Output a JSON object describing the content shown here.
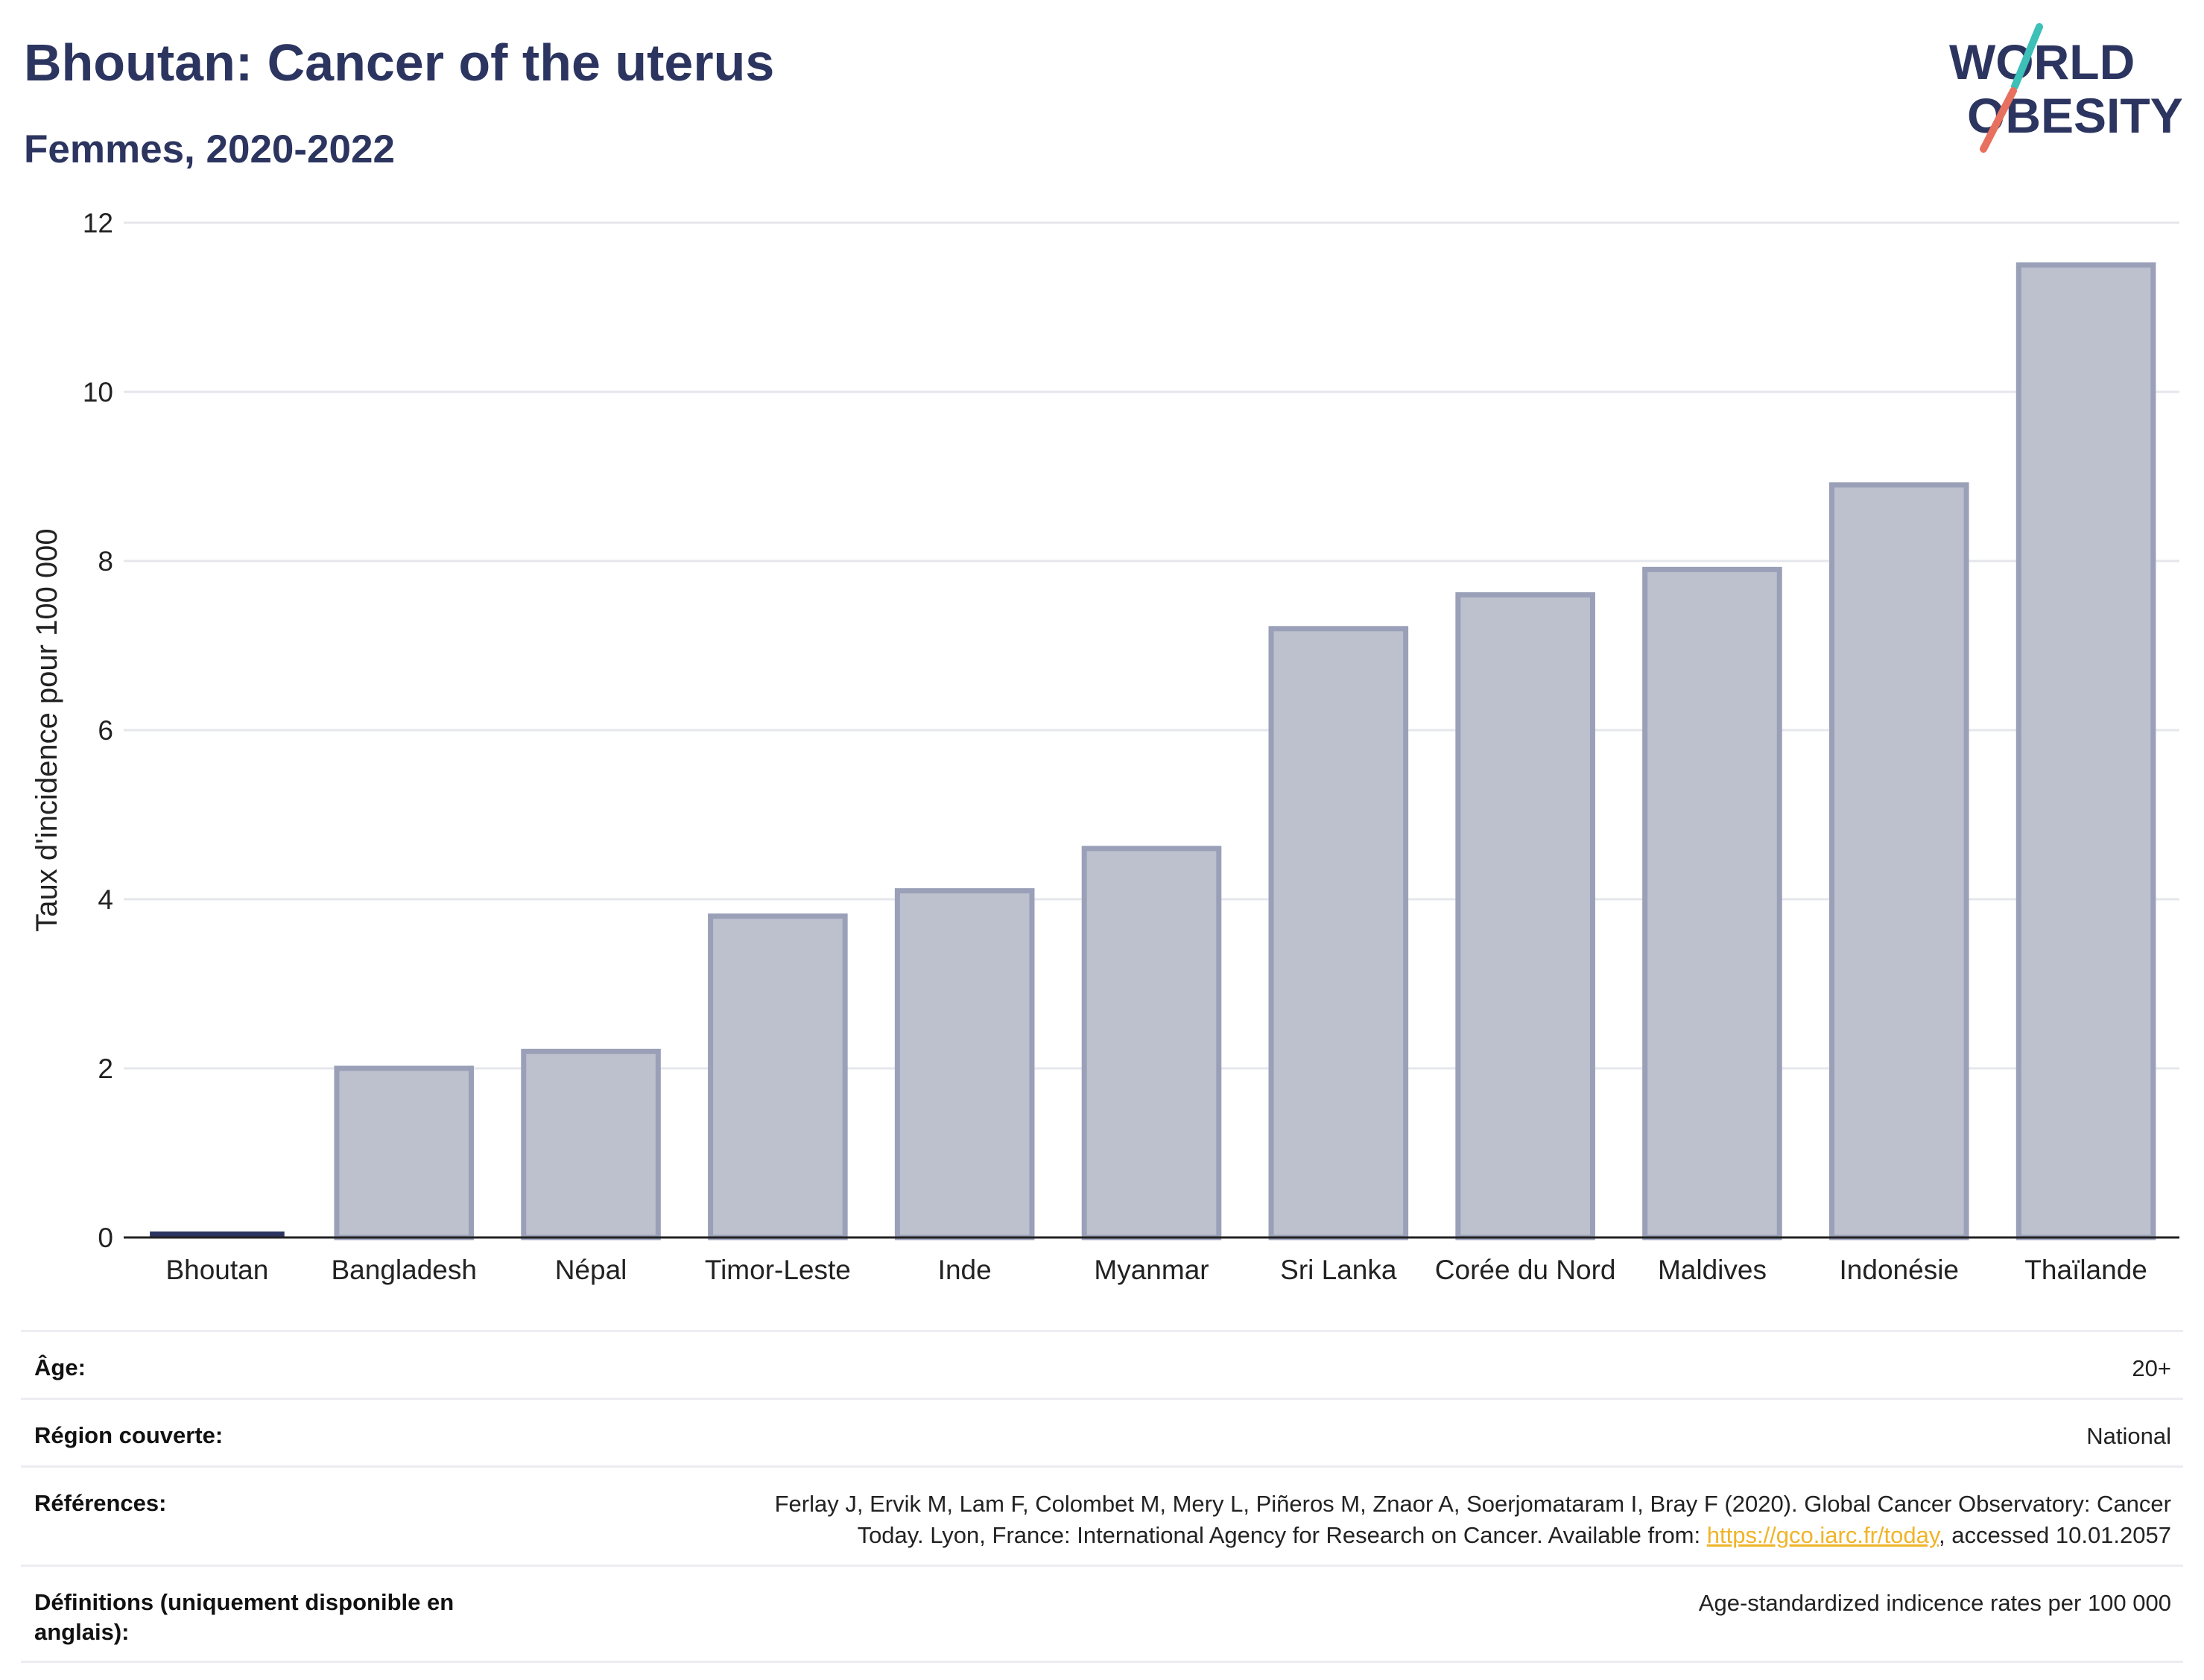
{
  "header": {
    "title": "Bhoutan: Cancer of the uterus",
    "subtitle": "Femmes, 2020-2022"
  },
  "logo": {
    "line1": "WORLD",
    "line2": "OBESITY",
    "colors": {
      "text": "#2c3560",
      "slash_top": "#3cc0b8",
      "slash_bottom": "#e8705e"
    }
  },
  "chart_data": {
    "type": "bar",
    "title": "Bhoutan: Cancer of the uterus",
    "subtitle": "Femmes, 2020-2022",
    "xlabel": "",
    "ylabel": "Taux d'incidence pour 100 000",
    "ylim": [
      0,
      12
    ],
    "yticks": [
      0,
      2,
      4,
      6,
      8,
      10,
      12
    ],
    "grid": true,
    "categories": [
      "Bhoutan",
      "Bangladesh",
      "Népal",
      "Timor-Leste",
      "Inde",
      "Myanmar",
      "Sri Lanka",
      "Corée du Nord",
      "Maldives",
      "Indonésie",
      "Thaïlande"
    ],
    "values": [
      0.05,
      2.0,
      2.2,
      3.8,
      4.1,
      4.6,
      7.2,
      7.6,
      7.9,
      8.9,
      11.5
    ],
    "highlight_category": "Bhoutan",
    "colors": {
      "bar_fill": "#bdc0cd",
      "bar_stroke": "#9aa0b8",
      "highlight": "#2c3560",
      "grid": "#e6e7ec",
      "axis": "#222222"
    }
  },
  "info": {
    "rows": [
      {
        "label": "Âge:",
        "value": "20+"
      },
      {
        "label": "Région couverte:",
        "value": "National"
      },
      {
        "label": "Références:",
        "value_line1": "Ferlay J, Ervik M, Lam F, Colombet M, Mery L, Piñeros M, Znaor A, Soerjomataram I, Bray F (2020). Global Cancer Observatory: Cancer",
        "value_line2_pre": "Today. Lyon, France: International Agency for Research on Cancer. Available from: ",
        "link_text": "https://gco.iarc.fr/today",
        "value_line2_post": ", accessed 10.01.2057"
      },
      {
        "label": "Définitions (uniquement disponible en anglais):",
        "value": "Age-standardized indicence rates per 100 000"
      }
    ]
  }
}
